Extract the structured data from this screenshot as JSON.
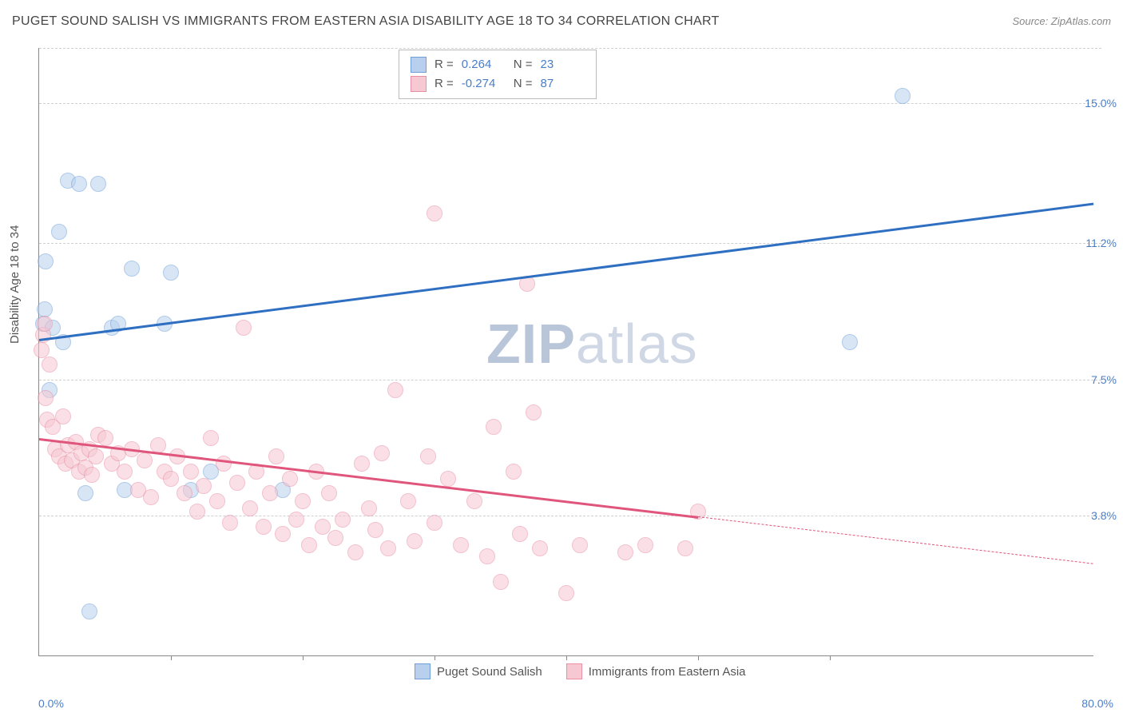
{
  "title": "PUGET SOUND SALISH VS IMMIGRANTS FROM EASTERN ASIA DISABILITY AGE 18 TO 34 CORRELATION CHART",
  "source": "Source: ZipAtlas.com",
  "ylabel": "Disability Age 18 to 34",
  "watermark_a": "ZIP",
  "watermark_b": "atlas",
  "chart": {
    "type": "scatter",
    "xlim": [
      0,
      80
    ],
    "ylim": [
      0,
      16.5
    ],
    "yticks": [
      3.8,
      7.5,
      11.2,
      15.0
    ],
    "ytick_labels": [
      "3.8%",
      "7.5%",
      "11.2%",
      "15.0%"
    ],
    "xticks": [
      10,
      20,
      30,
      40,
      50,
      60
    ],
    "x_end_labels": [
      "0.0%",
      "80.0%"
    ],
    "grid_color": "#d0d0d0",
    "axis_label_color": "#4a7ec9",
    "background_color": "#ffffff",
    "point_radius": 9,
    "point_opacity": 0.55,
    "series": [
      {
        "name": "Puget Sound Salish",
        "color_fill": "#b8d0ee",
        "color_stroke": "#6f9fd8",
        "trend_color": "#2f6fc1",
        "R": "0.264",
        "N": "23",
        "trend": {
          "x1": 0,
          "y1": 8.6,
          "x2": 80,
          "y2": 12.3,
          "solid_until_x": 80
        },
        "points": [
          [
            0.3,
            9.0
          ],
          [
            0.4,
            9.4
          ],
          [
            0.5,
            10.7
          ],
          [
            0.8,
            7.2
          ],
          [
            1.0,
            8.9
          ],
          [
            1.5,
            11.5
          ],
          [
            1.8,
            8.5
          ],
          [
            2.2,
            12.9
          ],
          [
            3.0,
            12.8
          ],
          [
            3.5,
            4.4
          ],
          [
            3.8,
            1.2
          ],
          [
            4.5,
            12.8
          ],
          [
            5.5,
            8.9
          ],
          [
            6.0,
            9.0
          ],
          [
            6.5,
            4.5
          ],
          [
            7.0,
            10.5
          ],
          [
            9.5,
            9.0
          ],
          [
            10.0,
            10.4
          ],
          [
            11.5,
            4.5
          ],
          [
            13.0,
            5.0
          ],
          [
            18.5,
            4.5
          ],
          [
            61.5,
            8.5
          ],
          [
            65.5,
            15.2
          ]
        ]
      },
      {
        "name": "Immigrants from Eastern Asia",
        "color_fill": "#f6c8d2",
        "color_stroke": "#e88fa5",
        "trend_color": "#e0557b",
        "R": "-0.274",
        "N": "87",
        "trend": {
          "x1": 0,
          "y1": 5.9,
          "x2": 80,
          "y2": 2.5,
          "solid_until_x": 50
        },
        "points": [
          [
            0.2,
            8.3
          ],
          [
            0.3,
            8.7
          ],
          [
            0.4,
            9.0
          ],
          [
            0.5,
            7.0
          ],
          [
            0.6,
            6.4
          ],
          [
            0.8,
            7.9
          ],
          [
            1.0,
            6.2
          ],
          [
            1.2,
            5.6
          ],
          [
            1.5,
            5.4
          ],
          [
            1.8,
            6.5
          ],
          [
            2.0,
            5.2
          ],
          [
            2.2,
            5.7
          ],
          [
            2.5,
            5.3
          ],
          [
            2.8,
            5.8
          ],
          [
            3.0,
            5.0
          ],
          [
            3.2,
            5.5
          ],
          [
            3.5,
            5.1
          ],
          [
            3.8,
            5.6
          ],
          [
            4.0,
            4.9
          ],
          [
            4.3,
            5.4
          ],
          [
            4.5,
            6.0
          ],
          [
            5.0,
            5.9
          ],
          [
            5.5,
            5.2
          ],
          [
            6.0,
            5.5
          ],
          [
            6.5,
            5.0
          ],
          [
            7.0,
            5.6
          ],
          [
            7.5,
            4.5
          ],
          [
            8.0,
            5.3
          ],
          [
            8.5,
            4.3
          ],
          [
            9.0,
            5.7
          ],
          [
            9.5,
            5.0
          ],
          [
            10.0,
            4.8
          ],
          [
            10.5,
            5.4
          ],
          [
            11.0,
            4.4
          ],
          [
            11.5,
            5.0
          ],
          [
            12.0,
            3.9
          ],
          [
            12.5,
            4.6
          ],
          [
            13.0,
            5.9
          ],
          [
            13.5,
            4.2
          ],
          [
            14.0,
            5.2
          ],
          [
            14.5,
            3.6
          ],
          [
            15.0,
            4.7
          ],
          [
            15.5,
            8.9
          ],
          [
            16.0,
            4.0
          ],
          [
            16.5,
            5.0
          ],
          [
            17.0,
            3.5
          ],
          [
            17.5,
            4.4
          ],
          [
            18.0,
            5.4
          ],
          [
            18.5,
            3.3
          ],
          [
            19.0,
            4.8
          ],
          [
            19.5,
            3.7
          ],
          [
            20.0,
            4.2
          ],
          [
            20.5,
            3.0
          ],
          [
            21.0,
            5.0
          ],
          [
            21.5,
            3.5
          ],
          [
            22.0,
            4.4
          ],
          [
            22.5,
            3.2
          ],
          [
            23.0,
            3.7
          ],
          [
            24.0,
            2.8
          ],
          [
            24.5,
            5.2
          ],
          [
            25.0,
            4.0
          ],
          [
            25.5,
            3.4
          ],
          [
            26.0,
            5.5
          ],
          [
            26.5,
            2.9
          ],
          [
            27.0,
            7.2
          ],
          [
            28.0,
            4.2
          ],
          [
            28.5,
            3.1
          ],
          [
            29.5,
            5.4
          ],
          [
            30.0,
            12.0
          ],
          [
            30.0,
            3.6
          ],
          [
            31.0,
            4.8
          ],
          [
            32.0,
            3.0
          ],
          [
            33.0,
            4.2
          ],
          [
            34.0,
            2.7
          ],
          [
            34.5,
            6.2
          ],
          [
            35.0,
            2.0
          ],
          [
            36.0,
            5.0
          ],
          [
            36.5,
            3.3
          ],
          [
            37.5,
            6.6
          ],
          [
            38.0,
            2.9
          ],
          [
            37.0,
            10.1
          ],
          [
            40.0,
            1.7
          ],
          [
            41.0,
            3.0
          ],
          [
            44.5,
            2.8
          ],
          [
            46.0,
            3.0
          ],
          [
            49.0,
            2.9
          ],
          [
            50.0,
            3.9
          ]
        ]
      }
    ]
  },
  "legend_bottom": [
    {
      "label": "Puget Sound Salish",
      "fill": "#b8d0ee",
      "stroke": "#6f9fd8"
    },
    {
      "label": "Immigrants from Eastern Asia",
      "fill": "#f6c8d2",
      "stroke": "#e88fa5"
    }
  ]
}
